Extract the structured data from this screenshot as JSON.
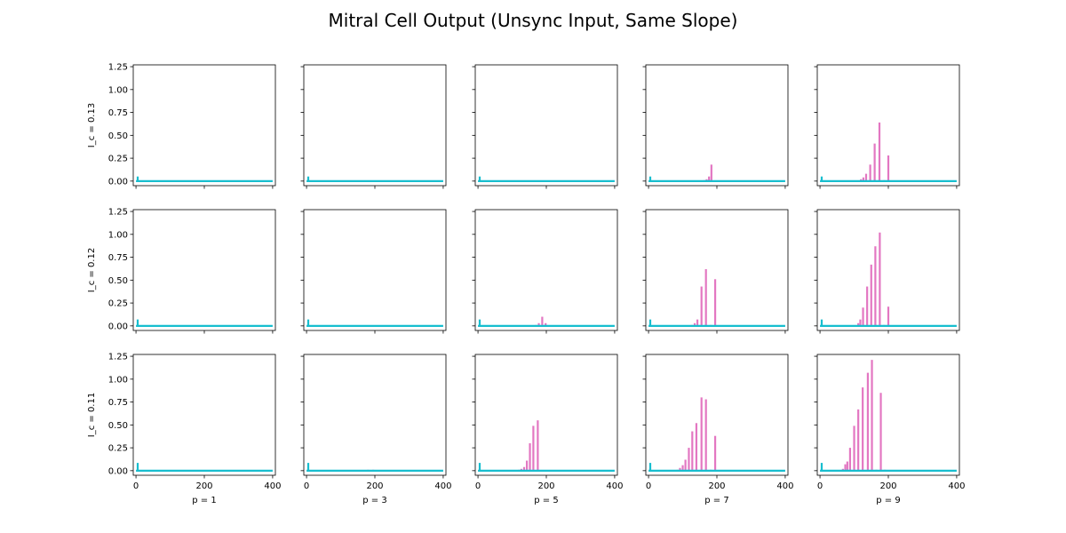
{
  "chart_data": {
    "type": "bar",
    "title": "Mitral Cell Output (Unsync Input, Same Slope)",
    "row_labels": [
      "I_c = 0.13",
      "I_c = 0.12",
      "I_c = 0.11"
    ],
    "col_labels": [
      "p = 1",
      "p = 3",
      "p = 5",
      "p = 7",
      "p = 9"
    ],
    "xlim": [
      -8,
      408
    ],
    "ylim": [
      -0.05,
      1.27
    ],
    "xticks": [
      0,
      200,
      400
    ],
    "yticks": [
      0.0,
      0.25,
      0.5,
      0.75,
      1.0,
      1.25
    ],
    "ytick_labels": [
      "0.00",
      "0.25",
      "0.50",
      "0.75",
      "1.00",
      "1.25"
    ],
    "colors": {
      "background_series": "#17becf",
      "mitral_series": "#e377c2",
      "axes": "#000000"
    },
    "baseline": {
      "x_start": 0,
      "x_end": 400,
      "y": 0.0,
      "initial_spike_x": 5
    },
    "initial_spike_heights": [
      0.05,
      0.07,
      0.085
    ],
    "panels": [
      [
        {
          "bars": []
        },
        {
          "bars": []
        },
        {
          "bars": []
        },
        {
          "bars": [
            [
              163,
              0.01
            ],
            [
              170,
              0.02
            ],
            [
              177,
              0.05
            ],
            [
              184,
              0.18
            ]
          ]
        },
        {
          "bars": [
            [
              120,
              0.02
            ],
            [
              127,
              0.04
            ],
            [
              135,
              0.08
            ],
            [
              147,
              0.18
            ],
            [
              160,
              0.41
            ],
            [
              174,
              0.64
            ],
            [
              188,
              0.01
            ],
            [
              200,
              0.28
            ]
          ]
        }
      ],
      [
        {
          "bars": []
        },
        {
          "bars": []
        },
        {
          "bars": [
            [
              170,
              0.01
            ],
            [
              178,
              0.03
            ],
            [
              188,
              0.1
            ],
            [
              198,
              0.03
            ]
          ]
        },
        {
          "bars": [
            [
              127,
              0.01
            ],
            [
              135,
              0.03
            ],
            [
              143,
              0.07
            ],
            [
              155,
              0.43
            ],
            [
              168,
              0.62
            ],
            [
              182,
              0.01
            ],
            [
              195,
              0.51
            ]
          ]
        },
        {
          "bars": [
            [
              112,
              0.03
            ],
            [
              118,
              0.07
            ],
            [
              126,
              0.2
            ],
            [
              138,
              0.43
            ],
            [
              150,
              0.67
            ],
            [
              162,
              0.87
            ],
            [
              175,
              1.02
            ],
            [
              187,
              0.01
            ],
            [
              200,
              0.21
            ]
          ]
        }
      ],
      [
        {
          "bars": []
        },
        {
          "bars": [
            [
              180,
              0.01
            ],
            [
              195,
              0.01
            ]
          ]
        },
        {
          "bars": [
            [
              120,
              0.01
            ],
            [
              127,
              0.02
            ],
            [
              135,
              0.04
            ],
            [
              143,
              0.11
            ],
            [
              152,
              0.3
            ],
            [
              162,
              0.49
            ],
            [
              175,
              0.55
            ]
          ]
        },
        {
          "bars": [
            [
              85,
              0.01
            ],
            [
              92,
              0.03
            ],
            [
              100,
              0.06
            ],
            [
              108,
              0.12
            ],
            [
              118,
              0.25
            ],
            [
              128,
              0.43
            ],
            [
              140,
              0.52
            ],
            [
              155,
              0.8
            ],
            [
              168,
              0.78
            ],
            [
              182,
              0.01
            ],
            [
              195,
              0.38
            ]
          ]
        },
        {
          "bars": [
            [
              67,
              0.02
            ],
            [
              74,
              0.07
            ],
            [
              80,
              0.1
            ],
            [
              88,
              0.25
            ],
            [
              100,
              0.49
            ],
            [
              112,
              0.67
            ],
            [
              125,
              0.91
            ],
            [
              140,
              1.07
            ],
            [
              152,
              1.21
            ],
            [
              165,
              0.01
            ],
            [
              178,
              0.85
            ],
            [
              190,
              0.01
            ]
          ]
        }
      ]
    ]
  }
}
